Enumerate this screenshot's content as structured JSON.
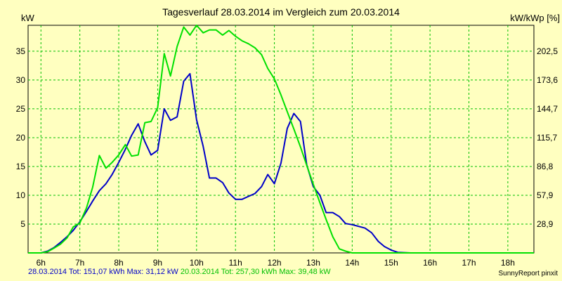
{
  "chart_data": {
    "type": "line",
    "title": "Tagesverlauf 28.03.2014 im Vergleich zum 20.03.2014",
    "ylabel_left": "kW",
    "ylabel_right": "kW/kWp [%]",
    "x_ticks": [
      "6h",
      "7h",
      "8h",
      "9h",
      "10h",
      "11h",
      "12h",
      "13h",
      "14h",
      "15h",
      "16h",
      "17h",
      "18h"
    ],
    "y_ticks_left": [
      "5",
      "10",
      "15",
      "20",
      "25",
      "30",
      "35"
    ],
    "y_ticks_right": [
      "28,9",
      "57,9",
      "86,8",
      "115,7",
      "144,7",
      "173,6",
      "202,5"
    ],
    "xlim": [
      5.67,
      18.67
    ],
    "ylim": [
      0,
      39.5
    ],
    "grid": true,
    "colors": {
      "series_a": "#0000c8",
      "series_b": "#00e000",
      "grid": "#00c000",
      "background": "#ffffc0"
    },
    "series": [
      {
        "points": [
          [
            5.67,
            0
          ],
          [
            6.0,
            0
          ],
          [
            6.17,
            0.3
          ],
          [
            6.33,
            0.9
          ],
          [
            6.5,
            1.8
          ],
          [
            6.67,
            2.8
          ],
          [
            6.83,
            3.9
          ],
          [
            7.0,
            5.4
          ],
          [
            7.17,
            7.2
          ],
          [
            7.33,
            9.0
          ],
          [
            7.5,
            10.8
          ],
          [
            7.67,
            12.0
          ],
          [
            7.83,
            13.6
          ],
          [
            8.0,
            15.7
          ],
          [
            8.17,
            18.0
          ],
          [
            8.33,
            20.4
          ],
          [
            8.5,
            22.4
          ],
          [
            8.67,
            19.3
          ],
          [
            8.83,
            17.0
          ],
          [
            9.0,
            17.8
          ],
          [
            9.17,
            25.0
          ],
          [
            9.33,
            23.0
          ],
          [
            9.5,
            23.6
          ],
          [
            9.67,
            29.8
          ],
          [
            9.83,
            31.1
          ],
          [
            10.0,
            23.1
          ],
          [
            10.17,
            18.5
          ],
          [
            10.33,
            13.0
          ],
          [
            10.5,
            13.0
          ],
          [
            10.67,
            12.2
          ],
          [
            10.83,
            10.4
          ],
          [
            11.0,
            9.3
          ],
          [
            11.17,
            9.3
          ],
          [
            11.33,
            9.8
          ],
          [
            11.5,
            10.3
          ],
          [
            11.67,
            11.5
          ],
          [
            11.83,
            13.6
          ],
          [
            12.0,
            12.0
          ],
          [
            12.17,
            15.6
          ],
          [
            12.33,
            21.6
          ],
          [
            12.5,
            24.2
          ],
          [
            12.67,
            22.8
          ],
          [
            12.83,
            15.3
          ],
          [
            13.0,
            11.5
          ],
          [
            13.17,
            10.0
          ],
          [
            13.33,
            7.0
          ],
          [
            13.5,
            7.0
          ],
          [
            13.67,
            6.3
          ],
          [
            13.83,
            5.1
          ],
          [
            14.0,
            4.9
          ],
          [
            14.17,
            4.6
          ],
          [
            14.33,
            4.3
          ],
          [
            14.5,
            3.5
          ],
          [
            14.67,
            2.0
          ],
          [
            14.83,
            1.1
          ],
          [
            15.0,
            0.5
          ],
          [
            15.17,
            0.1
          ],
          [
            15.5,
            0
          ],
          [
            18.67,
            0
          ]
        ]
      },
      {
        "points": [
          [
            5.67,
            0
          ],
          [
            6.0,
            0
          ],
          [
            6.17,
            0.2
          ],
          [
            6.33,
            0.8
          ],
          [
            6.5,
            1.5
          ],
          [
            6.67,
            2.6
          ],
          [
            6.83,
            4.5
          ],
          [
            7.0,
            5.2
          ],
          [
            7.17,
            7.8
          ],
          [
            7.33,
            11.4
          ],
          [
            7.5,
            16.9
          ],
          [
            7.67,
            14.7
          ],
          [
            7.83,
            15.7
          ],
          [
            8.0,
            17.0
          ],
          [
            8.17,
            18.8
          ],
          [
            8.33,
            16.8
          ],
          [
            8.5,
            17.0
          ],
          [
            8.67,
            22.6
          ],
          [
            8.83,
            22.8
          ],
          [
            9.0,
            25.2
          ],
          [
            9.17,
            34.6
          ],
          [
            9.33,
            30.7
          ],
          [
            9.5,
            35.8
          ],
          [
            9.67,
            39.2
          ],
          [
            9.83,
            37.8
          ],
          [
            10.0,
            39.5
          ],
          [
            10.17,
            38.2
          ],
          [
            10.33,
            38.7
          ],
          [
            10.5,
            38.7
          ],
          [
            10.67,
            37.8
          ],
          [
            10.83,
            38.6
          ],
          [
            11.0,
            37.6
          ],
          [
            11.17,
            36.8
          ],
          [
            11.33,
            36.3
          ],
          [
            11.5,
            35.6
          ],
          [
            11.67,
            34.4
          ],
          [
            11.83,
            32.0
          ],
          [
            12.0,
            30.2
          ],
          [
            12.17,
            27.4
          ],
          [
            12.33,
            24.5
          ],
          [
            12.5,
            21.5
          ],
          [
            12.67,
            18.4
          ],
          [
            12.83,
            15.2
          ],
          [
            13.0,
            11.9
          ],
          [
            13.17,
            8.7
          ],
          [
            13.33,
            5.8
          ],
          [
            13.5,
            2.8
          ],
          [
            13.67,
            0.7
          ],
          [
            13.83,
            0.3
          ],
          [
            14.0,
            0
          ],
          [
            18.67,
            0
          ]
        ]
      }
    ],
    "footer_a": "28.03.2014 Tot: 151,07 kWh Max: 31,12 kW",
    "footer_b": "20.03.2014 Tot: 257,30 kWh Max: 39,48 kW",
    "credit": "SunnyReport pinxit"
  }
}
